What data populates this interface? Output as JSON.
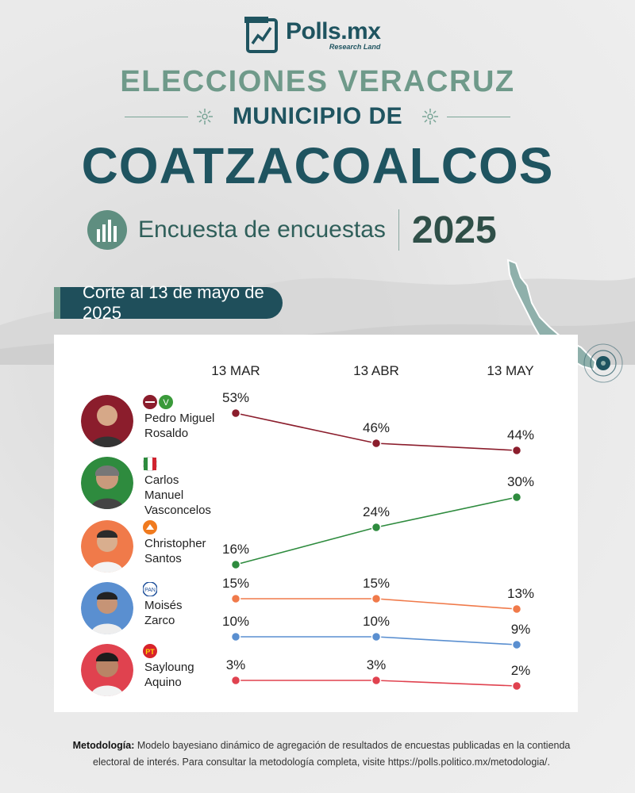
{
  "brand": {
    "name": "Polls.mx",
    "sub": "Research Land"
  },
  "header": {
    "title_1": "ELECCIONES VERACRUZ",
    "title_2": "MUNICIPIO DE",
    "title_3": "COATZACOALCOS",
    "subtitle": "Encuesta de encuestas",
    "year": "2025"
  },
  "cut_label": "Corte al 13 de mayo de 2025",
  "candidates": [
    {
      "name": "Pedro Miguel\nRosaldo",
      "color": "#8b1d2c",
      "party": "morena-pvem-logo",
      "photo_bg": "#8b1d2c"
    },
    {
      "name": "Carlos Manuel\nVasconcelos",
      "color": "#2e8b3e",
      "party": "pri-logo",
      "photo_bg": "#2e8b3e"
    },
    {
      "name": "Christopher\nSantos",
      "color": "#f07a4a",
      "party": "mc-logo",
      "photo_bg": "#f07a4a"
    },
    {
      "name": "Moisés\nZarco",
      "color": "#5a8fd0",
      "party": "pan-logo",
      "photo_bg": "#5a8fd0"
    },
    {
      "name": "Sayloung\nAquino",
      "color": "#e0424f",
      "party": "pt-logo",
      "photo_bg": "#e0424f"
    }
  ],
  "chart_data": {
    "type": "line",
    "x": [
      "13 MAR",
      "13 ABR",
      "13 MAY"
    ],
    "series": [
      {
        "name": "Pedro Miguel Rosaldo",
        "values": [
          53,
          46,
          44
        ],
        "labels": [
          "53%",
          "46%",
          "44%"
        ],
        "color": "#8b1d2c"
      },
      {
        "name": "Carlos Manuel Vasconcelos",
        "values": [
          16,
          24,
          30
        ],
        "labels": [
          "16%",
          "24%",
          "30%"
        ],
        "color": "#2e8b3e"
      },
      {
        "name": "Christopher Santos",
        "values": [
          15,
          15,
          13
        ],
        "labels": [
          "15%",
          "15%",
          "13%"
        ],
        "color": "#f07a4a"
      },
      {
        "name": "Moisés Zarco",
        "values": [
          10,
          10,
          9
        ],
        "labels": [
          "10%",
          "10%",
          "9%"
        ],
        "color": "#5a8fd0"
      },
      {
        "name": "Sayloung Aquino",
        "values": [
          3,
          3,
          2
        ],
        "labels": [
          "3%",
          "3%",
          "2%"
        ],
        "color": "#e0424f"
      }
    ]
  },
  "methodology": {
    "label": "Metodología:",
    "text": "Modelo bayesiano dinámico de agregación de resultados de encuestas publicadas en la contienda electoral de interés. Para consultar la metodología completa, visite https://polls.politico.mx/metodologia/."
  }
}
